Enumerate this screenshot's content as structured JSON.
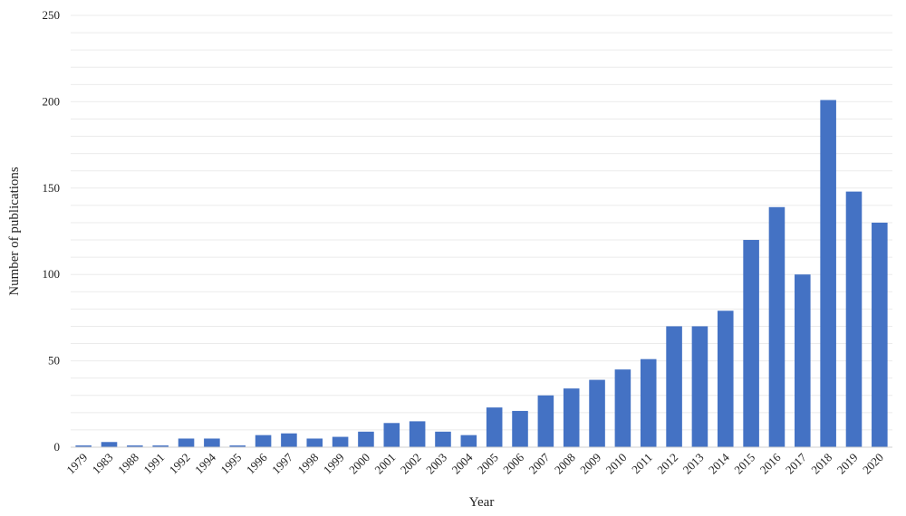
{
  "chart_data": {
    "type": "bar",
    "xlabel": "Year",
    "ylabel": "Number of publications",
    "ylim": [
      0,
      250
    ],
    "yticks": [
      0,
      50,
      100,
      150,
      200,
      250
    ],
    "minor_gridline_step": 10,
    "grid": true,
    "legend": "none",
    "bar_color": "#4472C4",
    "categories": [
      "1979",
      "1983",
      "1988",
      "1991",
      "1992",
      "1994",
      "1995",
      "1996",
      "1997",
      "1998",
      "1999",
      "2000",
      "2001",
      "2002",
      "2003",
      "2004",
      "2005",
      "2006",
      "2007",
      "2008",
      "2009",
      "2010",
      "2011",
      "2012",
      "2013",
      "2014",
      "2015",
      "2016",
      "2017",
      "2018",
      "2019",
      "2020"
    ],
    "values": [
      1,
      3,
      1,
      1,
      5,
      5,
      1,
      7,
      8,
      5,
      6,
      9,
      14,
      15,
      9,
      7,
      23,
      21,
      30,
      34,
      39,
      45,
      51,
      70,
      70,
      79,
      120,
      139,
      100,
      201,
      148,
      130
    ]
  }
}
